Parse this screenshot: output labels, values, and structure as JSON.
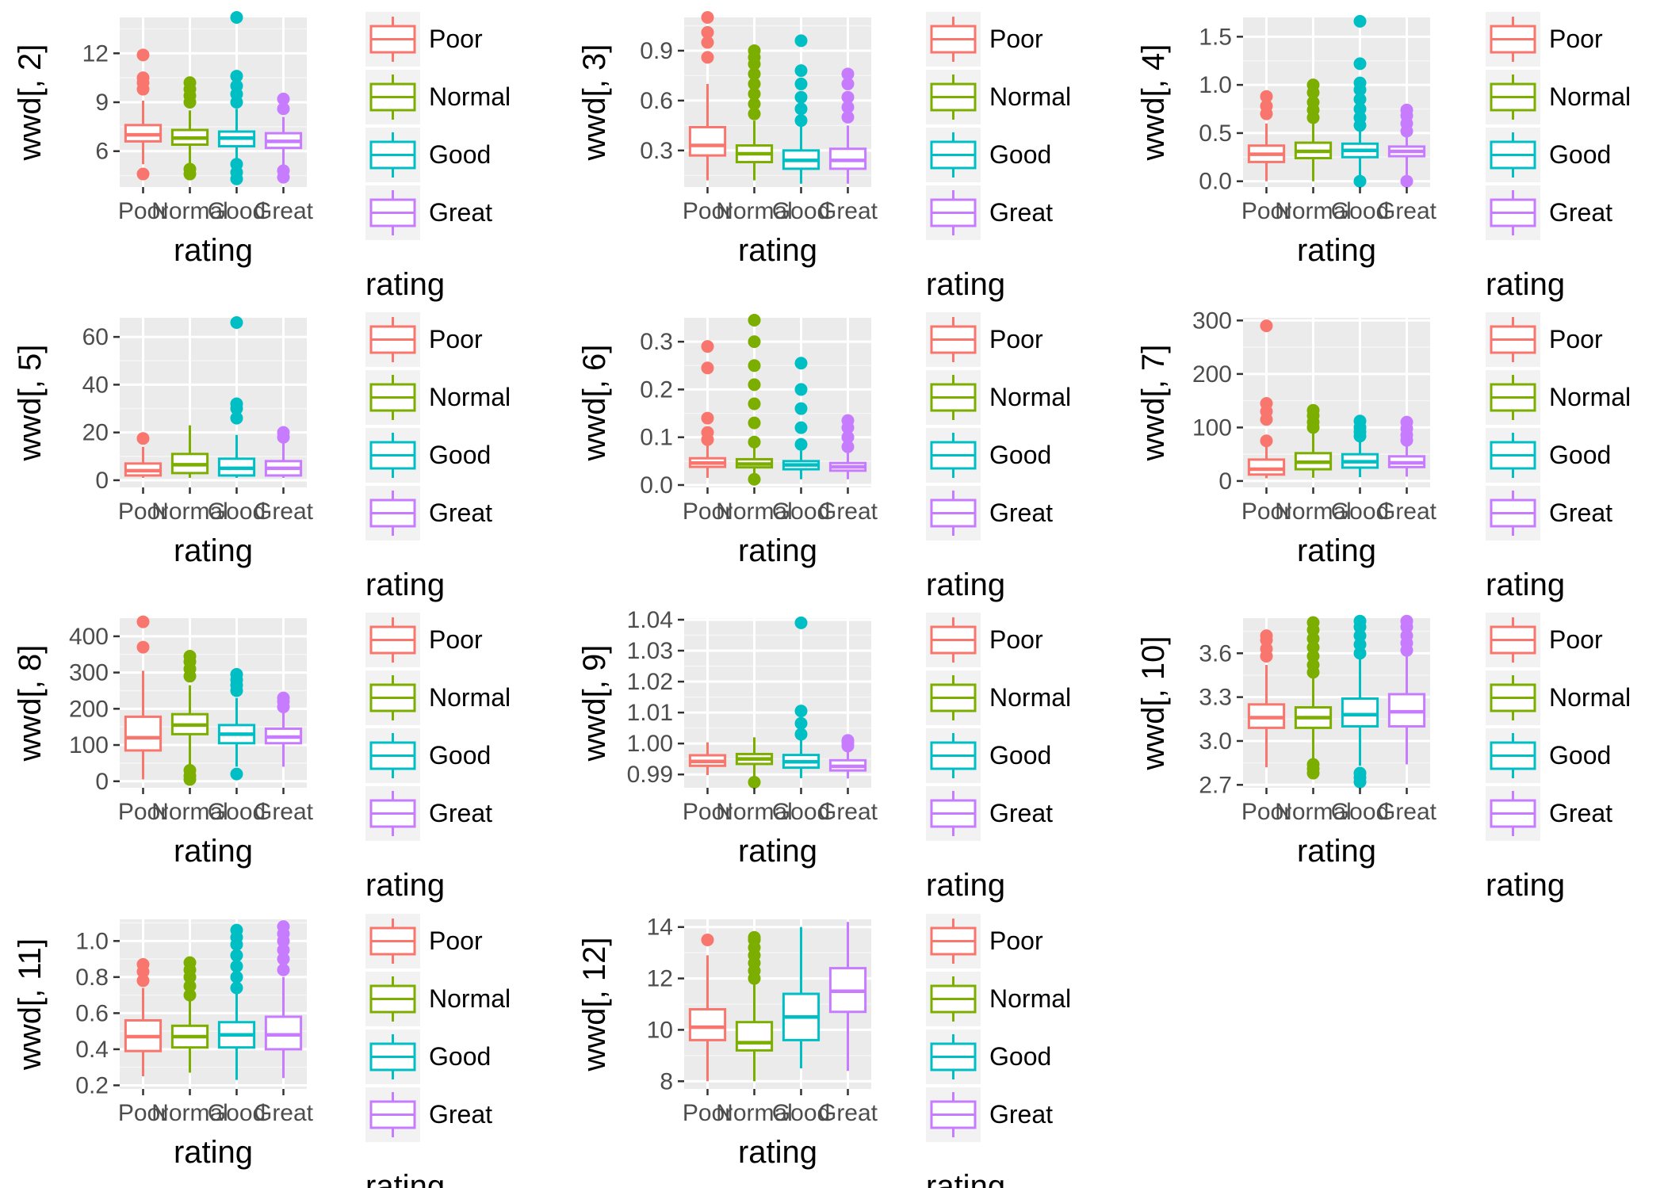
{
  "legend": {
    "title": "rating",
    "items": [
      {
        "label": "Poor",
        "color": "#F8766D"
      },
      {
        "label": "Normal",
        "color": "#7CAE00"
      },
      {
        "label": "Good",
        "color": "#00BFC4"
      },
      {
        "label": "Great",
        "color": "#C77CFF"
      }
    ]
  },
  "chart_data": [
    {
      "type": "box",
      "ylabel": "wwd[, 2]",
      "xlabel": "rating",
      "categories": [
        "Poor",
        "Normal",
        "Good",
        "Great"
      ],
      "ylim": [
        3.8,
        14.2
      ],
      "yticks": [
        6,
        9,
        12
      ],
      "boxes": [
        {
          "q1": 6.6,
          "median": 7.0,
          "q3": 7.6,
          "lower": 5.2,
          "upper": 9.1,
          "outliers": [
            4.6,
            9.8,
            10.2,
            10.5,
            11.9
          ]
        },
        {
          "q1": 6.4,
          "median": 6.8,
          "q3": 7.3,
          "lower": 5.1,
          "upper": 8.5,
          "outliers": [
            4.6,
            4.9,
            9.0,
            9.4,
            9.8,
            10.2
          ]
        },
        {
          "q1": 6.3,
          "median": 6.8,
          "q3": 7.2,
          "lower": 4.9,
          "upper": 8.6,
          "outliers": [
            4.3,
            4.7,
            5.2,
            9.0,
            9.5,
            10.0,
            10.6,
            14.2
          ]
        },
        {
          "q1": 6.2,
          "median": 6.6,
          "q3": 7.1,
          "lower": 5.0,
          "upper": 8.1,
          "outliers": [
            4.4,
            4.8,
            8.6,
            9.2
          ]
        }
      ]
    },
    {
      "type": "box",
      "ylabel": "wwd[, 3]",
      "xlabel": "rating",
      "categories": [
        "Poor",
        "Normal",
        "Good",
        "Great"
      ],
      "ylim": [
        0.08,
        1.1
      ],
      "yticks": [
        0.3,
        0.6,
        0.9
      ],
      "boxes": [
        {
          "q1": 0.27,
          "median": 0.33,
          "q3": 0.44,
          "lower": 0.12,
          "upper": 0.7,
          "outliers": [
            0.86,
            0.95,
            1.01,
            1.1
          ]
        },
        {
          "q1": 0.23,
          "median": 0.28,
          "q3": 0.33,
          "lower": 0.12,
          "upper": 0.48,
          "outliers": [
            0.52,
            0.58,
            0.64,
            0.7,
            0.76,
            0.82,
            0.86,
            0.9
          ]
        },
        {
          "q1": 0.19,
          "median": 0.24,
          "q3": 0.3,
          "lower": 0.1,
          "upper": 0.45,
          "outliers": [
            0.48,
            0.55,
            0.62,
            0.7,
            0.78,
            0.96
          ]
        },
        {
          "q1": 0.19,
          "median": 0.24,
          "q3": 0.31,
          "lower": 0.1,
          "upper": 0.45,
          "outliers": [
            0.5,
            0.56,
            0.62,
            0.7,
            0.76
          ]
        }
      ]
    },
    {
      "type": "box",
      "ylabel": "wwd[, 4]",
      "xlabel": "rating",
      "categories": [
        "Poor",
        "Normal",
        "Good",
        "Great"
      ],
      "ylim": [
        -0.06,
        1.7
      ],
      "yticks": [
        0.0,
        0.5,
        1.0,
        1.5
      ],
      "yticklabels": [
        "0.0",
        "0.5",
        "1.0",
        "1.5"
      ],
      "boxes": [
        {
          "q1": 0.2,
          "median": 0.28,
          "q3": 0.37,
          "lower": 0.0,
          "upper": 0.6,
          "outliers": [
            0.7,
            0.78,
            0.88
          ]
        },
        {
          "q1": 0.24,
          "median": 0.31,
          "q3": 0.4,
          "lower": 0.0,
          "upper": 0.6,
          "outliers": [
            0.66,
            0.74,
            0.82,
            0.92,
            1.0
          ]
        },
        {
          "q1": 0.25,
          "median": 0.32,
          "q3": 0.39,
          "lower": 0.0,
          "upper": 0.52,
          "outliers": [
            0.0,
            0.58,
            0.66,
            0.75,
            0.85,
            0.95,
            1.02,
            1.22,
            1.66
          ]
        },
        {
          "q1": 0.26,
          "median": 0.31,
          "q3": 0.36,
          "lower": 0.0,
          "upper": 0.48,
          "outliers": [
            0.0,
            0.52,
            0.6,
            0.68,
            0.74
          ]
        }
      ]
    },
    {
      "type": "box",
      "ylabel": "wwd[, 5]",
      "xlabel": "rating",
      "categories": [
        "Poor",
        "Normal",
        "Good",
        "Great"
      ],
      "ylim": [
        -3,
        68
      ],
      "yticks": [
        0,
        20,
        40,
        60
      ],
      "boxes": [
        {
          "q1": 2,
          "median": 4,
          "q3": 7,
          "lower": 1,
          "upper": 14,
          "outliers": [
            17.5
          ]
        },
        {
          "q1": 3,
          "median": 6.5,
          "q3": 11,
          "lower": 1,
          "upper": 23,
          "outliers": []
        },
        {
          "q1": 2,
          "median": 5,
          "q3": 9,
          "lower": 1,
          "upper": 19,
          "outliers": [
            26,
            30,
            32,
            66
          ]
        },
        {
          "q1": 2,
          "median": 5,
          "q3": 8,
          "lower": 1,
          "upper": 16,
          "outliers": [
            18,
            20
          ]
        }
      ]
    },
    {
      "type": "box",
      "ylabel": "wwd[, 6]",
      "xlabel": "rating",
      "categories": [
        "Poor",
        "Normal",
        "Good",
        "Great"
      ],
      "ylim": [
        -0.005,
        0.35
      ],
      "yticks": [
        0.0,
        0.1,
        0.2,
        0.3
      ],
      "yticklabels": [
        "0.0",
        "0.1",
        "0.2",
        "0.3"
      ],
      "boxes": [
        {
          "q1": 0.038,
          "median": 0.046,
          "q3": 0.056,
          "lower": 0.015,
          "upper": 0.082,
          "outliers": [
            0.095,
            0.11,
            0.14,
            0.245,
            0.29
          ]
        },
        {
          "q1": 0.037,
          "median": 0.044,
          "q3": 0.054,
          "lower": 0.012,
          "upper": 0.078,
          "outliers": [
            0.012,
            0.09,
            0.13,
            0.17,
            0.21,
            0.25,
            0.3,
            0.345
          ]
        },
        {
          "q1": 0.033,
          "median": 0.042,
          "q3": 0.05,
          "lower": 0.012,
          "upper": 0.072,
          "outliers": [
            0.085,
            0.12,
            0.16,
            0.2,
            0.255
          ]
        },
        {
          "q1": 0.03,
          "median": 0.038,
          "q3": 0.046,
          "lower": 0.012,
          "upper": 0.07,
          "outliers": [
            0.08,
            0.1,
            0.12,
            0.135
          ]
        }
      ]
    },
    {
      "type": "box",
      "ylabel": "wwd[, 7]",
      "xlabel": "rating",
      "categories": [
        "Poor",
        "Normal",
        "Good",
        "Great"
      ],
      "ylim": [
        -12,
        305
      ],
      "yticks": [
        0,
        100,
        200,
        300
      ],
      "boxes": [
        {
          "q1": 12,
          "median": 22,
          "q3": 40,
          "lower": 5,
          "upper": 65,
          "outliers": [
            75,
            115,
            130,
            145,
            290
          ]
        },
        {
          "q1": 22,
          "median": 35,
          "q3": 52,
          "lower": 6,
          "upper": 95,
          "outliers": [
            100,
            110,
            122,
            132
          ]
        },
        {
          "q1": 25,
          "median": 36,
          "q3": 50,
          "lower": 7,
          "upper": 80,
          "outliers": [
            84,
            92,
            100,
            112
          ]
        },
        {
          "q1": 26,
          "median": 34,
          "q3": 46,
          "lower": 8,
          "upper": 70,
          "outliers": [
            76,
            86,
            98,
            110
          ]
        }
      ]
    },
    {
      "type": "box",
      "ylabel": "wwd[, 8]",
      "xlabel": "rating",
      "categories": [
        "Poor",
        "Normal",
        "Good",
        "Great"
      ],
      "ylim": [
        -18,
        450
      ],
      "yticks": [
        0,
        100,
        200,
        300,
        400
      ],
      "boxes": [
        {
          "q1": 85,
          "median": 120,
          "q3": 178,
          "lower": 5,
          "upper": 305,
          "outliers": [
            370,
            440
          ]
        },
        {
          "q1": 130,
          "median": 155,
          "q3": 185,
          "lower": 45,
          "upper": 265,
          "outliers": [
            5,
            15,
            30,
            290,
            310,
            330,
            345
          ]
        },
        {
          "q1": 105,
          "median": 130,
          "q3": 155,
          "lower": 40,
          "upper": 230,
          "outliers": [
            20,
            250,
            265,
            280,
            295
          ]
        },
        {
          "q1": 105,
          "median": 122,
          "q3": 145,
          "lower": 40,
          "upper": 195,
          "outliers": [
            205,
            220,
            230
          ]
        }
      ]
    },
    {
      "type": "box",
      "ylabel": "wwd[, 9]",
      "xlabel": "rating",
      "categories": [
        "Poor",
        "Normal",
        "Good",
        "Great"
      ],
      "ylim": [
        0.9857,
        1.0405
      ],
      "yticks": [
        0.99,
        1.0,
        1.01,
        1.02,
        1.03,
        1.04
      ],
      "yticklabels": [
        "0.99",
        "1.00",
        "1.01",
        "1.02",
        "1.03",
        "1.04"
      ],
      "boxes": [
        {
          "q1": 0.9928,
          "median": 0.9942,
          "q3": 0.9962,
          "lower": 0.9898,
          "upper": 1.0004,
          "outliers": []
        },
        {
          "q1": 0.9934,
          "median": 0.995,
          "q3": 0.9966,
          "lower": 0.989,
          "upper": 1.002,
          "outliers": [
            0.9875
          ]
        },
        {
          "q1": 0.9922,
          "median": 0.9941,
          "q3": 0.9963,
          "lower": 0.9888,
          "upper": 1.002,
          "outliers": [
            1.003,
            1.0065,
            1.0105,
            1.039
          ]
        },
        {
          "q1": 0.9913,
          "median": 0.9926,
          "q3": 0.9946,
          "lower": 0.9887,
          "upper": 0.998,
          "outliers": [
            0.9992,
            1.0002,
            1.001
          ]
        }
      ]
    },
    {
      "type": "box",
      "ylabel": "wwd[, 10]",
      "xlabel": "rating",
      "categories": [
        "Poor",
        "Normal",
        "Good",
        "Great"
      ],
      "ylim": [
        2.68,
        3.84
      ],
      "yticks": [
        2.7,
        3.0,
        3.3,
        3.6
      ],
      "yticklabels": [
        "2.7",
        "3.0",
        "3.3",
        "3.6"
      ],
      "boxes": [
        {
          "q1": 3.09,
          "median": 3.16,
          "q3": 3.25,
          "lower": 2.82,
          "upper": 3.52,
          "outliers": [
            3.58,
            3.63,
            3.69,
            3.72
          ]
        },
        {
          "q1": 3.09,
          "median": 3.16,
          "q3": 3.23,
          "lower": 2.87,
          "upper": 3.44,
          "outliers": [
            2.78,
            2.81,
            2.84,
            3.47,
            3.52,
            3.58,
            3.64,
            3.7,
            3.76,
            3.81
          ]
        },
        {
          "q1": 3.1,
          "median": 3.18,
          "q3": 3.29,
          "lower": 2.83,
          "upper": 3.56,
          "outliers": [
            2.72,
            2.75,
            2.78,
            3.6,
            3.66,
            3.72,
            3.78,
            3.82
          ]
        },
        {
          "q1": 3.1,
          "median": 3.2,
          "q3": 3.32,
          "lower": 2.84,
          "upper": 3.58,
          "outliers": [
            3.62,
            3.67,
            3.72,
            3.78,
            3.82
          ]
        }
      ]
    },
    {
      "type": "box",
      "ylabel": "wwd[, 11]",
      "xlabel": "rating",
      "categories": [
        "Poor",
        "Normal",
        "Good",
        "Great"
      ],
      "ylim": [
        0.18,
        1.12
      ],
      "yticks": [
        0.2,
        0.4,
        0.6,
        0.8,
        1.0
      ],
      "yticklabels": [
        "0.2",
        "0.4",
        "0.6",
        "0.8",
        "1.0"
      ],
      "boxes": [
        {
          "q1": 0.39,
          "median": 0.47,
          "q3": 0.56,
          "lower": 0.25,
          "upper": 0.74,
          "outliers": [
            0.78,
            0.83,
            0.87
          ]
        },
        {
          "q1": 0.41,
          "median": 0.47,
          "q3": 0.53,
          "lower": 0.27,
          "upper": 0.68,
          "outliers": [
            0.7,
            0.75,
            0.8,
            0.84,
            0.88
          ]
        },
        {
          "q1": 0.41,
          "median": 0.48,
          "q3": 0.55,
          "lower": 0.23,
          "upper": 0.72,
          "outliers": [
            0.74,
            0.8,
            0.86,
            0.92,
            0.98,
            1.02,
            1.06
          ]
        },
        {
          "q1": 0.4,
          "median": 0.48,
          "q3": 0.58,
          "lower": 0.24,
          "upper": 0.8,
          "outliers": [
            0.84,
            0.9,
            0.95,
            1.0,
            1.04,
            1.08
          ]
        }
      ]
    },
    {
      "type": "box",
      "ylabel": "wwd[, 12]",
      "xlabel": "rating",
      "categories": [
        "Poor",
        "Normal",
        "Good",
        "Great"
      ],
      "ylim": [
        7.7,
        14.3
      ],
      "yticks": [
        8,
        10,
        12,
        14
      ],
      "boxes": [
        {
          "q1": 9.6,
          "median": 10.1,
          "q3": 10.8,
          "lower": 8.0,
          "upper": 12.9,
          "outliers": [
            13.5
          ]
        },
        {
          "q1": 9.2,
          "median": 9.5,
          "q3": 10.3,
          "lower": 8.0,
          "upper": 11.8,
          "outliers": [
            12.0,
            12.3,
            12.6,
            12.9,
            13.2,
            13.5,
            13.6
          ]
        },
        {
          "q1": 9.6,
          "median": 10.5,
          "q3": 11.4,
          "lower": 8.5,
          "upper": 14.0,
          "outliers": []
        },
        {
          "q1": 10.7,
          "median": 11.5,
          "q3": 12.4,
          "lower": 8.4,
          "upper": 14.2,
          "outliers": []
        }
      ]
    }
  ]
}
